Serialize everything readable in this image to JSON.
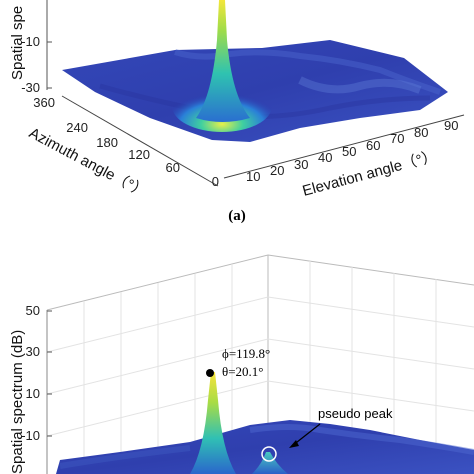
{
  "chart_data": [
    {
      "type": "surface3d",
      "panel_label": "(a)",
      "zlabel": "Spatial spe",
      "xlabel": "Azimuth angle（°）",
      "ylabel": "Elevation angle（°）",
      "z_ticks": [
        "-10",
        "-30"
      ],
      "azimuth_ticks": [
        "360",
        "240",
        "180",
        "120",
        "60",
        "0"
      ],
      "elevation_ticks": [
        "0",
        "10",
        "20",
        "30",
        "40",
        "50",
        "60",
        "70",
        "80",
        "90"
      ],
      "zlim": [
        -30,
        50
      ],
      "peak": {
        "azimuth": 120,
        "elevation": 20,
        "value": 40
      },
      "floor_value": -30
    },
    {
      "type": "surface3d",
      "zlabel": "Spatial spectrum (dB)",
      "z_ticks": [
        "50",
        "30",
        "10",
        "-10"
      ],
      "zlim": [
        -30,
        50
      ],
      "peak": {
        "azimuth": 119.8,
        "elevation": 20.1,
        "value": 30
      },
      "peak_annotation": {
        "phi": "ϕ=119.8°",
        "theta": "θ=20.1°"
      },
      "pseudo_peak_label": "pseudo peak",
      "floor_value": -30
    }
  ]
}
